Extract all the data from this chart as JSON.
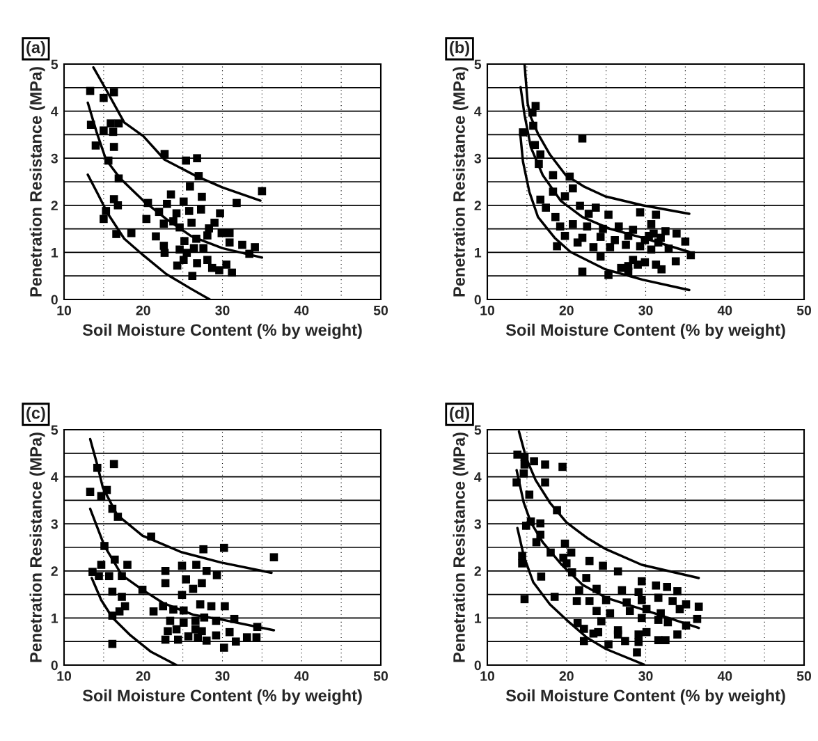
{
  "chart_data": [
    {
      "type": "scatter",
      "title": "(a)",
      "xlabel": "Soil Moisture Content (% by weight)",
      "ylabel": "Penetration Resistance (MPa)",
      "xlim": [
        10,
        50
      ],
      "ylim": [
        0,
        5
      ],
      "xticks": [
        10,
        {
          "value": 15,
          "label": null
        },
        20,
        {
          "value": 25,
          "label": null
        },
        30,
        {
          "value": 35,
          "label": null
        },
        40,
        {
          "value": 45,
          "label": null
        },
        50
      ],
      "yticks": [
        0,
        {
          "value": 0.5,
          "label": null
        },
        1,
        {
          "value": 1.5,
          "label": null
        },
        2,
        {
          "value": 2.5,
          "label": null
        },
        3,
        {
          "value": 3.5,
          "label": null
        },
        4,
        {
          "value": 4.5,
          "label": null
        },
        5
      ],
      "grid": true,
      "series": [
        {
          "marker": "square",
          "color": "#000000",
          "x": [
            13.3,
            15.0,
            16.3,
            13.4,
            15.9,
            16.9,
            15.0,
            16.2,
            14.0,
            16.3,
            15.6,
            16.9,
            22.7,
            25.4,
            26.8,
            27.0,
            25.9,
            35.0,
            23.5,
            27.4,
            31.8,
            16.3,
            16.8,
            20.6,
            22.0,
            23.0,
            25.1,
            24.2,
            25.8,
            27.3,
            29.7,
            15.3,
            15.0,
            20.4,
            22.6,
            23.8,
            24.6,
            26.1,
            29.0,
            28.3,
            18.5,
            16.6,
            21.6,
            22.6,
            22.7,
            25.2,
            26.7,
            28.1,
            29.9,
            30.9,
            24.6,
            25.5,
            26.4,
            27.6,
            30.9,
            32.5,
            34.1,
            33.4,
            25.1,
            24.3,
            26.8,
            28.1,
            28.7,
            29.6,
            30.5,
            31.2,
            26.2
          ],
          "values": [
            4.43,
            4.28,
            4.4,
            3.71,
            3.74,
            3.74,
            3.59,
            3.56,
            3.27,
            3.24,
            2.95,
            2.57,
            3.09,
            2.95,
            3.0,
            2.62,
            2.4,
            2.3,
            2.23,
            2.18,
            2.05,
            2.13,
            2.0,
            2.05,
            1.86,
            2.03,
            2.08,
            1.83,
            1.88,
            1.91,
            1.83,
            1.88,
            1.71,
            1.71,
            1.61,
            1.66,
            1.53,
            1.63,
            1.63,
            1.51,
            1.41,
            1.39,
            1.34,
            1.14,
            0.99,
            1.24,
            1.29,
            1.36,
            1.41,
            1.41,
            1.06,
            0.99,
            1.09,
            1.09,
            1.21,
            1.16,
            1.11,
            0.97,
            0.84,
            0.72,
            0.77,
            0.84,
            0.67,
            0.62,
            0.74,
            0.57,
            0.5
          ]
        },
        {
          "type": "line",
          "marker": "none",
          "color": "#000000",
          "x": [
            13.7,
            15.3,
            17.6,
            20,
            22.7,
            26.7,
            30,
            34.8
          ],
          "values": [
            4.93,
            4.46,
            3.76,
            3.47,
            2.97,
            2.62,
            2.38,
            2.1
          ]
        },
        {
          "type": "line",
          "marker": "none",
          "color": "#000000",
          "x": [
            13.0,
            14.1,
            15.3,
            17.1,
            20,
            22.9,
            26.1,
            30,
            35
          ],
          "values": [
            4.18,
            3.56,
            2.97,
            2.57,
            2.1,
            1.71,
            1.34,
            1.09,
            0.89
          ]
        },
        {
          "type": "line",
          "marker": "none",
          "color": "#000000",
          "x": [
            13.0,
            14.3,
            15.5,
            17.6,
            20,
            22.9,
            26.1,
            28.4
          ],
          "values": [
            2.65,
            2.23,
            1.83,
            1.29,
            0.94,
            0.54,
            0.22,
            0
          ]
        }
      ]
    },
    {
      "type": "scatter",
      "title": "(b)",
      "xlabel": "Soil Moisture Content (% by weight)",
      "ylabel": "Penetration Resistance (MPa)",
      "xlim": [
        10,
        50
      ],
      "ylim": [
        0,
        5
      ],
      "xticks": [
        10,
        {
          "value": 15,
          "label": null
        },
        20,
        {
          "value": 25,
          "label": null
        },
        30,
        {
          "value": 35,
          "label": null
        },
        40,
        {
          "value": 45,
          "label": null
        },
        50
      ],
      "yticks": [
        0,
        {
          "value": 0.5,
          "label": null
        },
        1,
        {
          "value": 1.5,
          "label": null
        },
        2,
        {
          "value": 2.5,
          "label": null
        },
        3,
        {
          "value": 3.5,
          "label": null
        },
        4,
        {
          "value": 4.5,
          "label": null
        },
        5
      ],
      "grid": true,
      "series": [
        {
          "marker": "square",
          "color": "#000000",
          "x": [
            16.1,
            15.7,
            15.8,
            14.5,
            22.0,
            16.0,
            16.7,
            16.5,
            18.3,
            20.4,
            20.8,
            18.3,
            19.8,
            16.7,
            21.7,
            23.7,
            17.4,
            22.8,
            25.3,
            29.3,
            31.3,
            18.6,
            19.2,
            20.8,
            22.6,
            24.6,
            26.6,
            28.4,
            30.7,
            32.5,
            33.9,
            19.8,
            22.0,
            24.3,
            26.1,
            27.8,
            29.9,
            31.6,
            35.0,
            18.8,
            21.4,
            23.4,
            25.5,
            27.5,
            29.3,
            30.7,
            32.9,
            35.7,
            24.3,
            28.4,
            27.8,
            29.0,
            29.9,
            31.3,
            32.0,
            33.8,
            26.9,
            27.8,
            22.0,
            25.3,
            30.4,
            31.9,
            31.0
          ],
          "values": [
            4.11,
            3.97,
            3.69,
            3.55,
            3.42,
            3.28,
            3.08,
            2.88,
            2.64,
            2.61,
            2.36,
            2.29,
            2.19,
            2.12,
            1.99,
            1.95,
            1.95,
            1.82,
            1.8,
            1.85,
            1.8,
            1.75,
            1.55,
            1.6,
            1.55,
            1.5,
            1.55,
            1.48,
            1.6,
            1.45,
            1.4,
            1.35,
            1.31,
            1.33,
            1.26,
            1.35,
            1.26,
            1.21,
            1.23,
            1.13,
            1.21,
            1.11,
            1.11,
            1.16,
            1.13,
            1.06,
            1.08,
            0.94,
            0.91,
            0.84,
            0.71,
            0.74,
            0.79,
            0.74,
            0.64,
            0.81,
            0.67,
            0.59,
            0.59,
            0.52,
            1.35,
            1.31,
            1.4
          ]
        },
        {
          "type": "line",
          "marker": "none",
          "color": "#000000",
          "x": [
            14.7,
            15.1,
            15.5,
            16.4,
            17.9,
            19.9,
            22.3,
            24.9,
            29.6,
            35.5
          ],
          "values": [
            5.0,
            4.16,
            3.87,
            3.52,
            3.08,
            2.64,
            2.39,
            2.19,
            2.0,
            1.82
          ]
        },
        {
          "type": "line",
          "marker": "none",
          "color": "#000000",
          "x": [
            14.2,
            14.7,
            15.5,
            17.0,
            19.3,
            22.0,
            25.5,
            29.6,
            35.5
          ],
          "values": [
            4.51,
            3.92,
            3.23,
            2.64,
            2.09,
            1.75,
            1.5,
            1.31,
            1.01
          ]
        },
        {
          "type": "line",
          "marker": "none",
          "color": "#000000",
          "x": [
            14.2,
            14.5,
            15.3,
            16.4,
            18.5,
            20.5,
            24.9,
            29.6,
            35.5
          ],
          "values": [
            3.45,
            2.93,
            2.29,
            1.75,
            1.31,
            1.01,
            0.64,
            0.42,
            0.2
          ]
        }
      ]
    },
    {
      "type": "scatter",
      "title": "(c)",
      "xlabel": "Soil Moisture Content (% by weight)",
      "ylabel": "Penetration Resistance (MPa)",
      "xlim": [
        10,
        50
      ],
      "ylim": [
        0,
        5
      ],
      "xticks": [
        10,
        {
          "value": 15,
          "label": null
        },
        20,
        {
          "value": 25,
          "label": null
        },
        30,
        {
          "value": 35,
          "label": null
        },
        40,
        {
          "value": 45,
          "label": null
        },
        50
      ],
      "yticks": [
        0,
        {
          "value": 0.5,
          "label": null
        },
        1,
        {
          "value": 1.5,
          "label": null
        },
        2,
        {
          "value": 2.5,
          "label": null
        },
        3,
        {
          "value": 3.5,
          "label": null
        },
        4,
        {
          "value": 4.5,
          "label": null
        },
        5
      ],
      "grid": true,
      "series": [
        {
          "marker": "square",
          "color": "#000000",
          "x": [
            16.3,
            14.2,
            13.3,
            15.4,
            14.7,
            16.1,
            16.8,
            21.0,
            27.6,
            30.2,
            36.5,
            15.1,
            16.4,
            18.0,
            14.7,
            13.6,
            14.4,
            15.7,
            17.3,
            22.8,
            24.9,
            26.7,
            28.0,
            29.3,
            22.8,
            25.4,
            27.4,
            26.3,
            24.9,
            16.1,
            17.3,
            17.7,
            17.0,
            16.1,
            19.9,
            21.3,
            22.5,
            23.8,
            25.1,
            27.2,
            28.6,
            30.3,
            23.4,
            25.1,
            26.6,
            27.7,
            29.2,
            31.5,
            34.4,
            23.1,
            24.2,
            25.7,
            26.9,
            28.0,
            29.2,
            30.9,
            22.8,
            24.4,
            31.7,
            33.1,
            34.3,
            30.2,
            16.1,
            27.4,
            26.6
          ],
          "values": [
            4.27,
            4.19,
            3.68,
            3.72,
            3.59,
            3.32,
            3.15,
            2.73,
            2.46,
            2.49,
            2.29,
            2.53,
            2.24,
            2.13,
            2.13,
            1.98,
            1.89,
            1.89,
            1.89,
            2.0,
            2.11,
            2.13,
            2.0,
            1.91,
            1.74,
            1.82,
            1.74,
            1.62,
            1.49,
            1.56,
            1.45,
            1.25,
            1.14,
            1.05,
            1.6,
            1.14,
            1.25,
            1.18,
            1.16,
            1.29,
            1.25,
            1.25,
            0.94,
            0.9,
            0.94,
            1.01,
            0.94,
            0.98,
            0.81,
            0.72,
            0.76,
            0.61,
            0.59,
            0.52,
            0.63,
            0.7,
            0.54,
            0.54,
            0.5,
            0.59,
            0.59,
            0.37,
            0.45,
            0.72,
            0.76
          ]
        },
        {
          "type": "line",
          "marker": "none",
          "color": "#000000",
          "x": [
            13.3,
            14.2,
            14.9,
            16.7,
            19.9,
            24.8,
            29.8,
            36.2
          ],
          "values": [
            4.8,
            4.25,
            3.77,
            3.19,
            2.75,
            2.4,
            2.18,
            1.96
          ]
        },
        {
          "type": "line",
          "marker": "none",
          "color": "#000000",
          "x": [
            13.3,
            15.1,
            17.3,
            19.9,
            22.5,
            26.3,
            30.1,
            36.5
          ],
          "values": [
            3.32,
            2.53,
            1.91,
            1.6,
            1.32,
            1.07,
            0.96,
            0.74
          ]
        },
        {
          "type": "line",
          "marker": "none",
          "color": "#000000",
          "x": [
            13.5,
            14.7,
            16.1,
            18.4,
            21.0,
            24.2
          ],
          "values": [
            1.85,
            1.38,
            1.01,
            0.63,
            0.28,
            0
          ]
        }
      ]
    },
    {
      "type": "scatter",
      "title": "(d)",
      "xlabel": "Soil Moisture Content (% by weight)",
      "ylabel": "Penetration Resistance (MPa)",
      "xlim": [
        10,
        50
      ],
      "ylim": [
        0,
        5
      ],
      "xticks": [
        10,
        {
          "value": 15,
          "label": null
        },
        20,
        {
          "value": 25,
          "label": null
        },
        30,
        {
          "value": 35,
          "label": null
        },
        40,
        {
          "value": 45,
          "label": null
        },
        50
      ],
      "yticks": [
        0,
        {
          "value": 0.5,
          "label": null
        },
        1,
        {
          "value": 1.5,
          "label": null
        },
        2,
        {
          "value": 2.5,
          "label": null
        },
        3,
        {
          "value": 3.5,
          "label": null
        },
        4,
        {
          "value": 4.5,
          "label": null
        },
        5
      ],
      "grid": true,
      "series": [
        {
          "marker": "square",
          "color": "#000000",
          "x": [
            13.8,
            14.7,
            15.9,
            17.3,
            19.5,
            14.7,
            14.6,
            13.7,
            17.3,
            15.3,
            18.8,
            15.5,
            14.9,
            16.7,
            16.7,
            16.2,
            19.8,
            18.0,
            20.6,
            19.6,
            20.0,
            14.4,
            14.4,
            22.9,
            24.6,
            26.5,
            16.8,
            22.5,
            20.7,
            29.5,
            18.5,
            14.7,
            21.6,
            23.8,
            27.0,
            29.1,
            31.3,
            32.7,
            34.0,
            21.3,
            22.9,
            25.0,
            27.6,
            29.5,
            31.6,
            33.4,
            35.1,
            36.7,
            23.8,
            25.5,
            28.0,
            30.1,
            31.9,
            34.3,
            36.5,
            24.4,
            29.5,
            31.6,
            32.8,
            35.1,
            21.4,
            22.2,
            23.4,
            24.0,
            26.5,
            26.5,
            27.4,
            29.1,
            30.1,
            31.6,
            32.5,
            34.0,
            22.2,
            25.3,
            29.1,
            28.9
          ],
          "values": [
            4.47,
            4.42,
            4.33,
            4.26,
            4.21,
            4.26,
            4.07,
            3.88,
            3.88,
            3.62,
            3.29,
            3.05,
            2.96,
            3.01,
            2.77,
            2.61,
            2.58,
            2.39,
            2.39,
            2.28,
            2.16,
            2.32,
            2.16,
            2.21,
            2.11,
            1.99,
            1.88,
            1.85,
            1.97,
            1.78,
            1.45,
            1.4,
            1.59,
            1.62,
            1.59,
            1.55,
            1.69,
            1.66,
            1.57,
            1.36,
            1.36,
            1.38,
            1.33,
            1.38,
            1.43,
            1.36,
            1.29,
            1.24,
            1.15,
            1.1,
            1.15,
            1.19,
            1.1,
            1.19,
            0.98,
            0.93,
            1.0,
            0.96,
            0.91,
            0.84,
            0.89,
            0.77,
            0.67,
            0.7,
            0.74,
            0.65,
            0.51,
            0.65,
            0.7,
            0.53,
            0.53,
            0.65,
            0.51,
            0.44,
            0.49,
            0.27
          ]
        },
        {
          "type": "line",
          "marker": "none",
          "color": "#000000",
          "x": [
            14.0,
            14.9,
            16.1,
            17.9,
            20.0,
            22.6,
            25.0,
            29.5,
            36.7
          ],
          "values": [
            4.96,
            4.4,
            3.93,
            3.45,
            3.03,
            2.7,
            2.46,
            2.13,
            1.85
          ]
        },
        {
          "type": "line",
          "marker": "none",
          "color": "#000000",
          "x": [
            13.7,
            14.6,
            15.5,
            17.0,
            19.4,
            22.0,
            25.0,
            29.5,
            36.7
          ],
          "values": [
            4.14,
            3.45,
            3.03,
            2.61,
            2.13,
            1.71,
            1.43,
            1.19,
            0.79
          ]
        },
        {
          "type": "line",
          "marker": "none",
          "color": "#000000",
          "x": [
            13.8,
            14.6,
            15.8,
            17.9,
            20.0,
            22.6,
            25.0,
            29.8
          ],
          "values": [
            2.91,
            2.32,
            1.76,
            1.29,
            0.96,
            0.58,
            0.34,
            0.01
          ]
        }
      ]
    }
  ]
}
